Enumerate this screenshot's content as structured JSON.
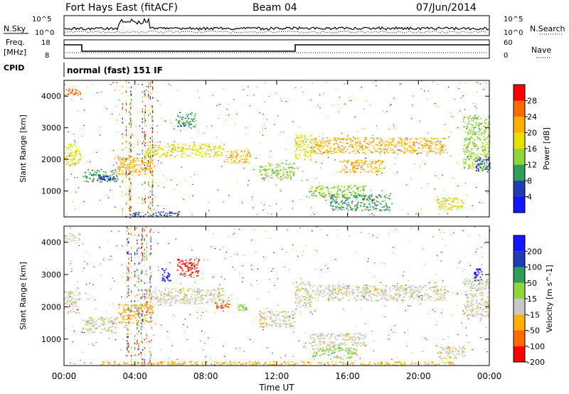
{
  "header": {
    "station": "Fort Hays East (fitACF)",
    "beam": "Beam 04",
    "date": "07/Jun/2014"
  },
  "noise_panel": {
    "left_label": "N.Sky",
    "right_label": "N.Search",
    "y_ticks_left": [
      "10^5",
      "10^0"
    ],
    "y_ticks_right": [
      "10^5",
      "10^0"
    ]
  },
  "freq_panel": {
    "left_label_1": "Freq.",
    "left_label_2": "[MHz]",
    "right_label": "Nave",
    "y_ticks_left": [
      "18",
      "8"
    ],
    "y_ticks_right": [
      "60",
      "0"
    ]
  },
  "cpid": {
    "label": "CPID",
    "mode": "normal (fast) 151 IF"
  },
  "chart_data": [
    {
      "type": "heatmap",
      "name": "Power",
      "ylabel": "Slant Range [km]",
      "y_ticks": [
        1000,
        2000,
        3000,
        4000
      ],
      "ylim": [
        180,
        4500
      ],
      "xlim_hours": [
        0,
        24
      ],
      "colorbar": {
        "label": "Power [dB]",
        "ticks": [
          "28",
          "24",
          "20",
          "16",
          "12",
          "8",
          "4"
        ],
        "colors": [
          "#ff0000",
          "#ff6a00",
          "#ffb000",
          "#e8e000",
          "#8fd63c",
          "#2e9e5a",
          "#1e3cb4",
          "#1414ff"
        ]
      },
      "regions": [
        {
          "t0": 0.0,
          "t1": 0.9,
          "r0": 1800,
          "r1": 2500,
          "level": 3
        },
        {
          "t0": 0.0,
          "t1": 0.9,
          "r0": 4050,
          "r1": 4250,
          "level": 1
        },
        {
          "t0": 1.0,
          "t1": 3.0,
          "r0": 1300,
          "r1": 1700,
          "level": 5
        },
        {
          "t0": 2.0,
          "t1": 2.8,
          "r0": 1350,
          "r1": 1500,
          "level": 6
        },
        {
          "t0": 3.0,
          "t1": 5.0,
          "r0": 1500,
          "r1": 2100,
          "level": 2
        },
        {
          "t0": 4.5,
          "t1": 9.0,
          "r0": 2100,
          "r1": 2500,
          "level": 3
        },
        {
          "t0": 6.3,
          "t1": 7.4,
          "r0": 3000,
          "r1": 3500,
          "level": 5
        },
        {
          "t0": 3.8,
          "t1": 6.5,
          "r0": 200,
          "r1": 360,
          "level": 6
        },
        {
          "t0": 9.0,
          "t1": 10.5,
          "r0": 1900,
          "r1": 2300,
          "level": 2
        },
        {
          "t0": 11.0,
          "t1": 13.0,
          "r0": 1400,
          "r1": 1900,
          "level": 4
        },
        {
          "t0": 13.0,
          "t1": 14.0,
          "r0": 2000,
          "r1": 2800,
          "level": 3
        },
        {
          "t0": 13.8,
          "t1": 17.0,
          "r0": 800,
          "r1": 1200,
          "level": 4
        },
        {
          "t0": 15.0,
          "t1": 18.5,
          "r0": 400,
          "r1": 900,
          "level": 5
        },
        {
          "t0": 14.0,
          "t1": 21.5,
          "r0": 2200,
          "r1": 2700,
          "level": 2
        },
        {
          "t0": 15.5,
          "t1": 18.0,
          "r0": 1600,
          "r1": 2000,
          "level": 2
        },
        {
          "t0": 21.0,
          "t1": 22.6,
          "r0": 400,
          "r1": 800,
          "level": 3
        },
        {
          "t0": 22.5,
          "t1": 24.0,
          "r0": 1700,
          "r1": 3400,
          "level": 4
        },
        {
          "t0": 23.2,
          "t1": 24.0,
          "r0": 1600,
          "r1": 2100,
          "level": 6
        }
      ]
    },
    {
      "type": "heatmap",
      "name": "Velocity",
      "ylabel": "Slant Range [km]",
      "xlabel": "Time UT",
      "x_ticks": [
        "00:00",
        "04:00",
        "08:00",
        "12:00",
        "16:00",
        "20:00",
        "00:00"
      ],
      "y_ticks": [
        1000,
        2000,
        3000,
        4000
      ],
      "ylim": [
        180,
        4500
      ],
      "xlim_hours": [
        0,
        24
      ],
      "colorbar": {
        "label": "Velocity [m s^-1]",
        "ticks": [
          "200",
          "100",
          "50",
          "15",
          "-15",
          "-50",
          "-100",
          "-200"
        ],
        "colors": [
          "#1414ff",
          "#1e3cb4",
          "#2e9e5a",
          "#8fd63c",
          "#c8c8c8",
          "#ffb000",
          "#ff6a00",
          "#ff0000"
        ]
      },
      "regions": [
        {
          "t0": 0.0,
          "t1": 0.9,
          "r0": 1800,
          "r1": 2500,
          "level": 4
        },
        {
          "t0": 0.0,
          "t1": 0.9,
          "r0": 4050,
          "r1": 4300,
          "level": 4
        },
        {
          "t0": 1.0,
          "t1": 3.0,
          "r0": 1200,
          "r1": 1700,
          "level": 4
        },
        {
          "t0": 3.0,
          "t1": 5.0,
          "r0": 1500,
          "r1": 2100,
          "level": 5
        },
        {
          "t0": 4.5,
          "t1": 9.0,
          "r0": 2100,
          "r1": 2600,
          "level": 4
        },
        {
          "t0": 6.3,
          "t1": 7.6,
          "r0": 2950,
          "r1": 3500,
          "level": 7
        },
        {
          "t0": 8.5,
          "t1": 9.3,
          "r0": 1950,
          "r1": 2250,
          "level": 6
        },
        {
          "t0": 5.5,
          "t1": 6.0,
          "r0": 2800,
          "r1": 3200,
          "level": 0
        },
        {
          "t0": 9.8,
          "t1": 10.3,
          "r0": 1900,
          "r1": 2100,
          "level": 3
        },
        {
          "t0": 11.0,
          "t1": 13.0,
          "r0": 1400,
          "r1": 1900,
          "level": 4
        },
        {
          "t0": 13.0,
          "t1": 14.0,
          "r0": 2000,
          "r1": 2800,
          "level": 4
        },
        {
          "t0": 13.8,
          "t1": 17.0,
          "r0": 800,
          "r1": 1200,
          "level": 4
        },
        {
          "t0": 14.0,
          "t1": 16.5,
          "r0": 400,
          "r1": 750,
          "level": 3
        },
        {
          "t0": 14.0,
          "t1": 21.5,
          "r0": 2200,
          "r1": 2700,
          "level": 4
        },
        {
          "t0": 21.0,
          "t1": 22.6,
          "r0": 400,
          "r1": 800,
          "level": 4
        },
        {
          "t0": 22.5,
          "t1": 24.0,
          "r0": 1700,
          "r1": 2900,
          "level": 4
        },
        {
          "t0": 23.1,
          "t1": 23.6,
          "r0": 2800,
          "r1": 3200,
          "level": 0
        },
        {
          "t0": 2.0,
          "t1": 22.0,
          "r0": 200,
          "r1": 320,
          "level": 5
        }
      ]
    }
  ]
}
